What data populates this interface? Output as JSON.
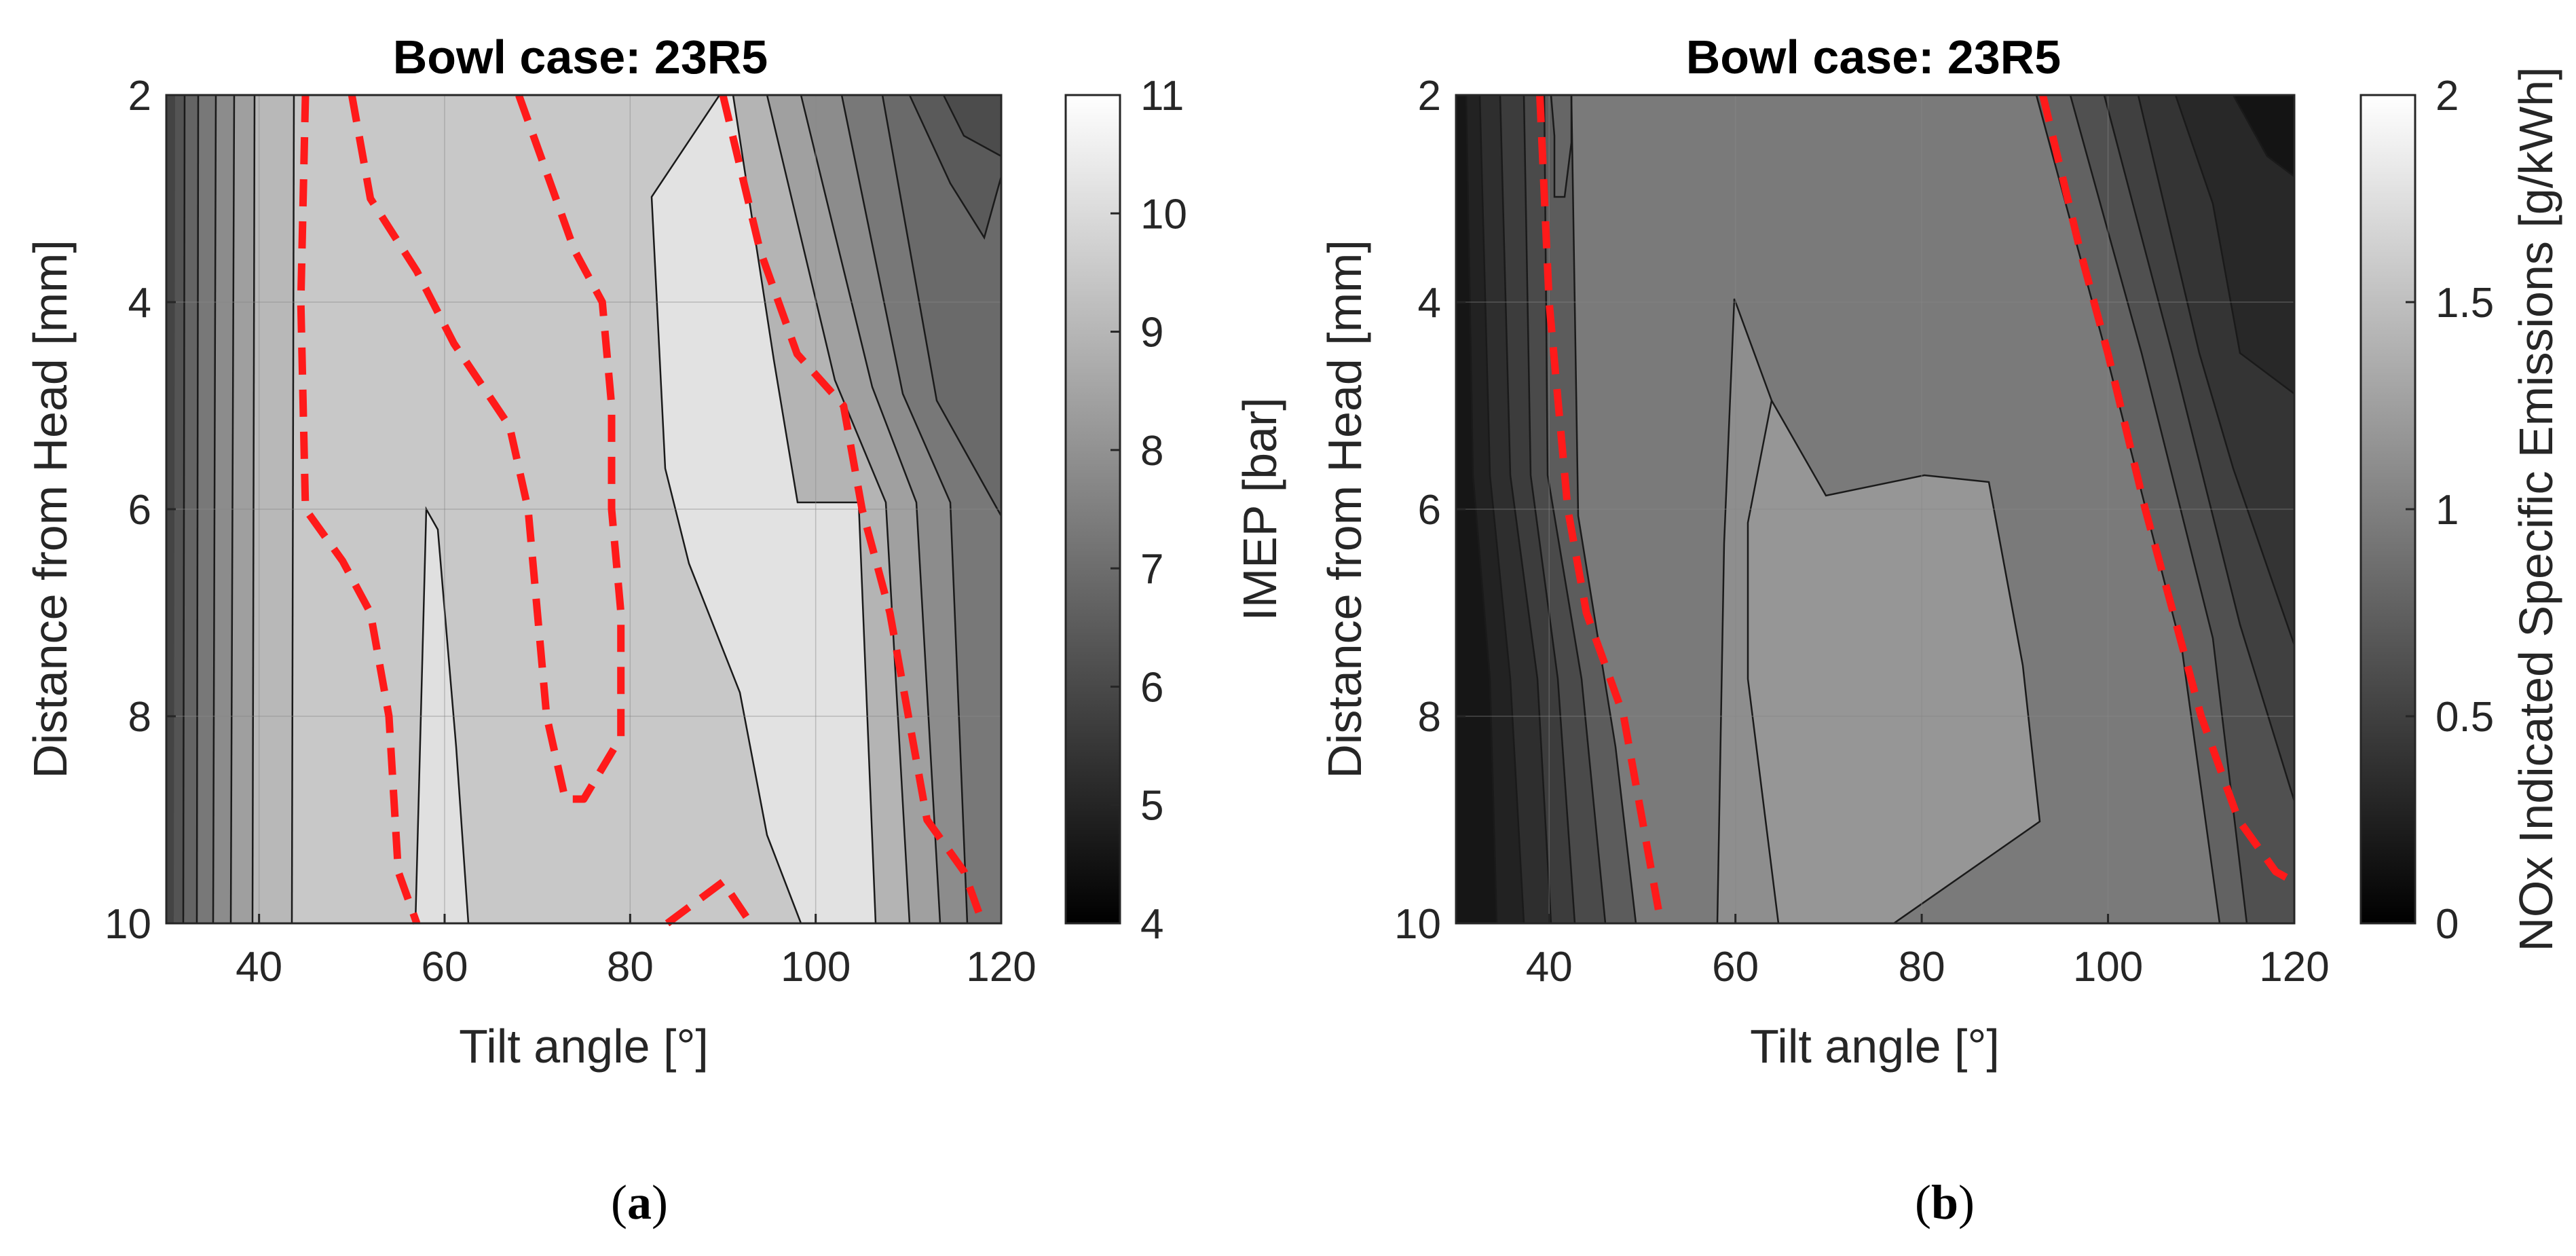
{
  "chart_data": [
    {
      "id": "a",
      "type": "contour",
      "title": "Bowl case: 23R5",
      "xlabel": "Tilt angle [°]",
      "ylabel": "Distance from Head [mm]",
      "xlim": [
        30,
        120
      ],
      "ylim": [
        2,
        10
      ],
      "y_reversed": true,
      "xticks": [
        "40",
        "60",
        "80",
        "100",
        "120"
      ],
      "yticks": [
        "2",
        "4",
        "6",
        "8",
        "10"
      ],
      "colorbar": {
        "label": "IMEP [bar]",
        "range": [
          4,
          11
        ],
        "ticks": [
          "4",
          "5",
          "6",
          "7",
          "8",
          "9",
          "10",
          "11"
        ],
        "colormap": "gray"
      },
      "red_dashed_contours": [
        [
          [
            45,
            2.0
          ],
          [
            44.5,
            4.0
          ],
          [
            45,
            6.0
          ],
          [
            49,
            6.5
          ],
          [
            52,
            7.0
          ],
          [
            54,
            8.0
          ],
          [
            55,
            9.5
          ],
          [
            57,
            10.0
          ]
        ],
        [
          [
            50,
            2.0
          ],
          [
            52,
            3.0
          ],
          [
            57,
            3.7
          ],
          [
            61,
            4.4
          ],
          [
            64,
            4.8
          ],
          [
            67,
            5.2
          ],
          [
            69,
            6.0
          ],
          [
            70,
            7.0
          ],
          [
            71,
            8.0
          ],
          [
            73,
            8.8
          ],
          [
            75,
            8.8
          ],
          [
            79,
            8.2
          ],
          [
            79,
            7.0
          ],
          [
            78,
            6.0
          ],
          [
            78,
            5.0
          ],
          [
            77,
            4.0
          ],
          [
            74,
            3.5
          ],
          [
            72,
            3.0
          ],
          [
            68,
            2.0
          ]
        ],
        [
          [
            90,
            2.0
          ],
          [
            94,
            3.5
          ],
          [
            98,
            4.5
          ],
          [
            103,
            5.0
          ],
          [
            105,
            6.0
          ],
          [
            108,
            7.0
          ],
          [
            110,
            8.0
          ],
          [
            112,
            9.0
          ],
          [
            116,
            9.5
          ],
          [
            118,
            10.0
          ]
        ],
        [
          [
            84,
            10.0
          ],
          [
            90,
            9.6
          ],
          [
            93,
            10.0
          ]
        ]
      ]
    },
    {
      "id": "b",
      "type": "contour",
      "title": "Bowl case: 23R5",
      "xlabel": "Tilt angle [°]",
      "ylabel": "Distance from Head [mm]",
      "xlim": [
        30,
        120
      ],
      "ylim": [
        2,
        10
      ],
      "y_reversed": true,
      "xticks": [
        "40",
        "60",
        "80",
        "100",
        "120"
      ],
      "yticks": [
        "2",
        "4",
        "6",
        "8",
        "10"
      ],
      "colorbar": {
        "label": "NOx Indicated Specific Emissions [g/kWh]",
        "range": [
          0,
          2
        ],
        "ticks": [
          "0",
          "0.5",
          "1",
          "1.5",
          "2"
        ],
        "colormap": "gray"
      },
      "red_dashed_contours": [
        [
          [
            39,
            2.0
          ],
          [
            40,
            4.0
          ],
          [
            42,
            6.0
          ],
          [
            44,
            7.0
          ],
          [
            48,
            8.0
          ],
          [
            50,
            9.0
          ],
          [
            52,
            10.0
          ]
        ],
        [
          [
            93,
            2.0
          ],
          [
            97,
            3.5
          ],
          [
            100,
            4.5
          ],
          [
            104,
            6.0
          ],
          [
            107,
            7.0
          ],
          [
            110,
            8.0
          ],
          [
            114,
            9.0
          ],
          [
            118,
            9.5
          ],
          [
            120,
            9.6
          ]
        ]
      ]
    }
  ],
  "captions": [
    {
      "open": "(",
      "letter": "a",
      "close": ")"
    },
    {
      "open": "(",
      "letter": "b",
      "close": ")"
    }
  ]
}
